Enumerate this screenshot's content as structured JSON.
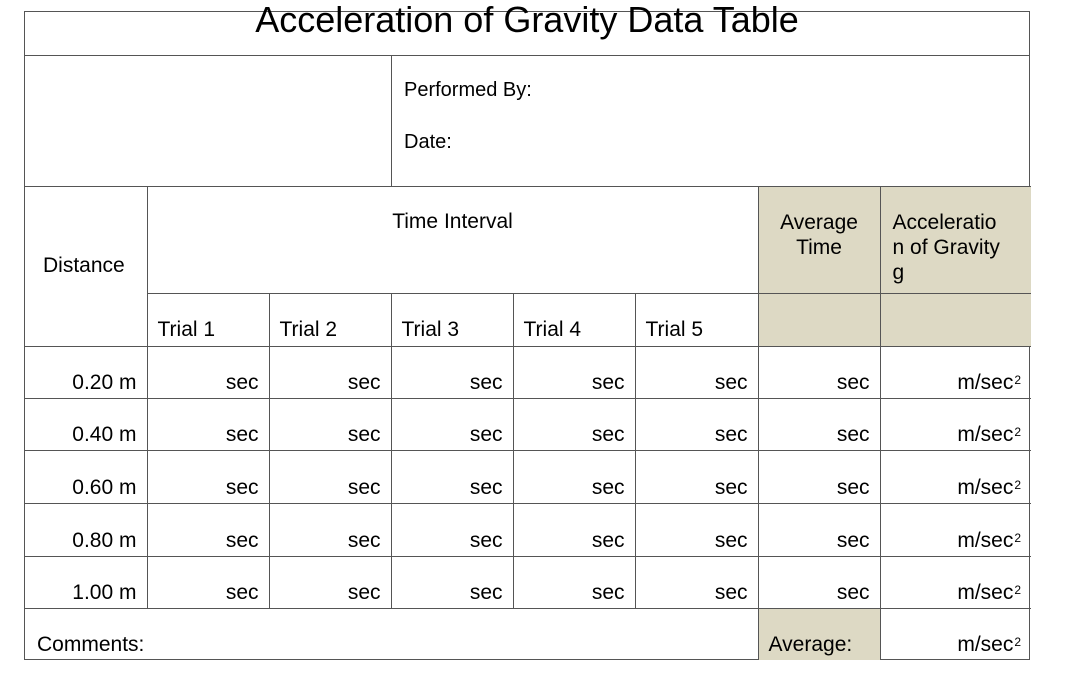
{
  "title": "Acceleration of Gravity Data Table",
  "info": {
    "performed_by": "Performed By:",
    "date": "Date:"
  },
  "headers": {
    "distance": "Distance",
    "time_interval": "Time Interval",
    "average_time": "Average Time",
    "acceleration_line1": "Acceleratio",
    "acceleration_line2": "n of Gravity",
    "acceleration_line3": "g",
    "trials": [
      "Trial 1",
      "Trial 2",
      "Trial 3",
      "Trial 4",
      "Trial 5"
    ]
  },
  "rows": [
    {
      "distance": "0.20 m",
      "units": [
        "sec",
        "sec",
        "sec",
        "sec",
        "sec",
        "sec"
      ],
      "accel_unit": "m/sec",
      "exponent": "2"
    },
    {
      "distance": "0.40 m",
      "units": [
        "sec",
        "sec",
        "sec",
        "sec",
        "sec",
        "sec"
      ],
      "accel_unit": "m/sec",
      "exponent": "2"
    },
    {
      "distance": "0.60 m",
      "units": [
        "sec",
        "sec",
        "sec",
        "sec",
        "sec",
        "sec"
      ],
      "accel_unit": "m/sec",
      "exponent": "2"
    },
    {
      "distance": "0.80 m",
      "units": [
        "sec",
        "sec",
        "sec",
        "sec",
        "sec",
        "sec"
      ],
      "accel_unit": "m/sec",
      "exponent": "2"
    },
    {
      "distance": "1.00 m",
      "units": [
        "sec",
        "sec",
        "sec",
        "sec",
        "sec",
        "sec"
      ],
      "accel_unit": "m/sec",
      "exponent": "2"
    }
  ],
  "footer": {
    "comments": "Comments:",
    "average": "Average:",
    "accel_unit": "m/sec",
    "exponent": "2"
  },
  "colors": {
    "header_shade": "#ddd9c4",
    "border": "#555555"
  }
}
